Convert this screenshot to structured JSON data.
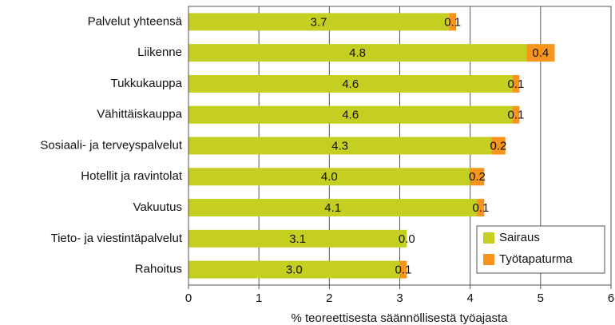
{
  "chart_data": {
    "type": "stacked-barh",
    "categories": [
      "Palvelut yhteensä",
      "Liikenne",
      "Tukkukauppa",
      "Vähittäiskauppa",
      "Sosiaali- ja terveyspalvelut",
      "Hotellit ja ravintolat",
      "Vakuutus",
      "Tieto- ja viestintäpalvelut",
      "Rahoitus"
    ],
    "series": [
      {
        "name": "Sairaus",
        "color": "#c4cf21",
        "values": [
          3.7,
          4.8,
          4.6,
          4.6,
          4.3,
          4.0,
          4.1,
          3.1,
          3.0
        ],
        "value_labels": [
          "3.7",
          "4.8",
          "4.6",
          "4.6",
          "4.3",
          "4.0",
          "4.1",
          "3.1",
          "3.0"
        ]
      },
      {
        "name": "Työtapaturma",
        "color": "#f7941d",
        "values": [
          0.1,
          0.4,
          0.1,
          0.1,
          0.2,
          0.2,
          0.1,
          0.0,
          0.1
        ],
        "value_labels": [
          "0.1",
          "0.4",
          "0.1",
          "0.1",
          "0.2",
          "0.2",
          "0.1",
          "0.0",
          "0.1"
        ]
      }
    ],
    "xlabel": "% teoreettisesta säännöllisestä työajasta",
    "xlim": [
      0,
      6
    ],
    "xticks": [
      0,
      1,
      2,
      3,
      4,
      5,
      6
    ],
    "grid": true,
    "legend": "lower right"
  }
}
